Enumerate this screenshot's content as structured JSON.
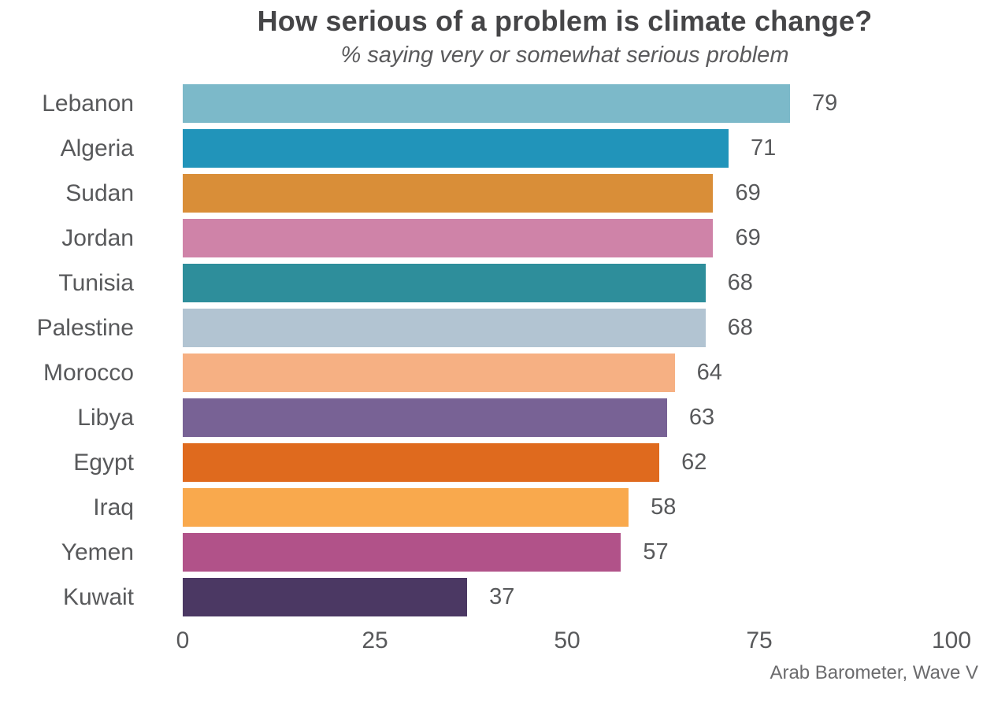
{
  "title": "How serious of a problem is climate change?",
  "subtitle": "% saying very or somewhat serious problem",
  "source": "Arab Barometer, Wave V",
  "chart_data": {
    "type": "bar",
    "orientation": "horizontal",
    "title": "How serious of a problem is climate change?",
    "subtitle": "% saying very or somewhat serious problem",
    "categories": [
      "Lebanon",
      "Algeria",
      "Sudan",
      "Jordan",
      "Tunisia",
      "Palestine",
      "Morocco",
      "Libya",
      "Egypt",
      "Iraq",
      "Yemen",
      "Kuwait"
    ],
    "values": [
      79,
      71,
      69,
      69,
      68,
      68,
      64,
      63,
      62,
      58,
      57,
      37
    ],
    "bar_colors": [
      "#7cb9c9",
      "#2194ba",
      "#d98e38",
      "#cf83a8",
      "#2e8e9b",
      "#b2c4d2",
      "#f6b083",
      "#786295",
      "#df6a1e",
      "#f9a94d",
      "#b15289",
      "#4b3863"
    ],
    "xlabel": "",
    "ylabel": "",
    "xlim": [
      0,
      100
    ],
    "x_ticks": [
      0,
      25,
      50,
      75,
      100
    ],
    "grid": false,
    "value_labels": true,
    "legend": null,
    "source": "Arab Barometer, Wave V"
  },
  "colors": {
    "title_text": "#454547",
    "label_text": "#58595b",
    "source_text": "#6b6b6d",
    "background": "#ffffff"
  }
}
